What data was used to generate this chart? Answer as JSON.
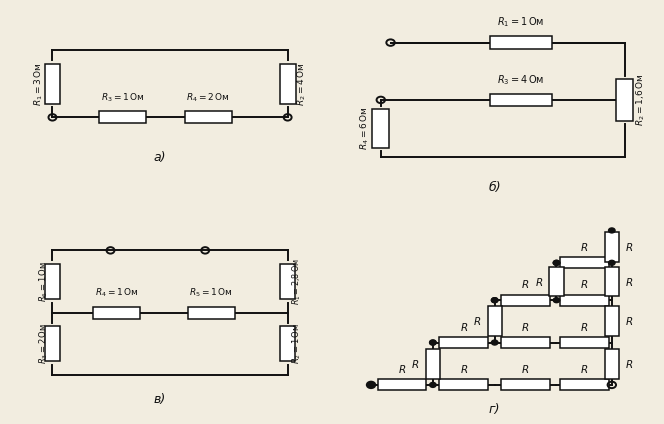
{
  "bg_color": "#f2ede0",
  "line_color": "#111111",
  "resistor_fill": "#ffffff",
  "resistor_edge": "#111111",
  "panels": [
    "a",
    "b",
    "v",
    "g"
  ]
}
